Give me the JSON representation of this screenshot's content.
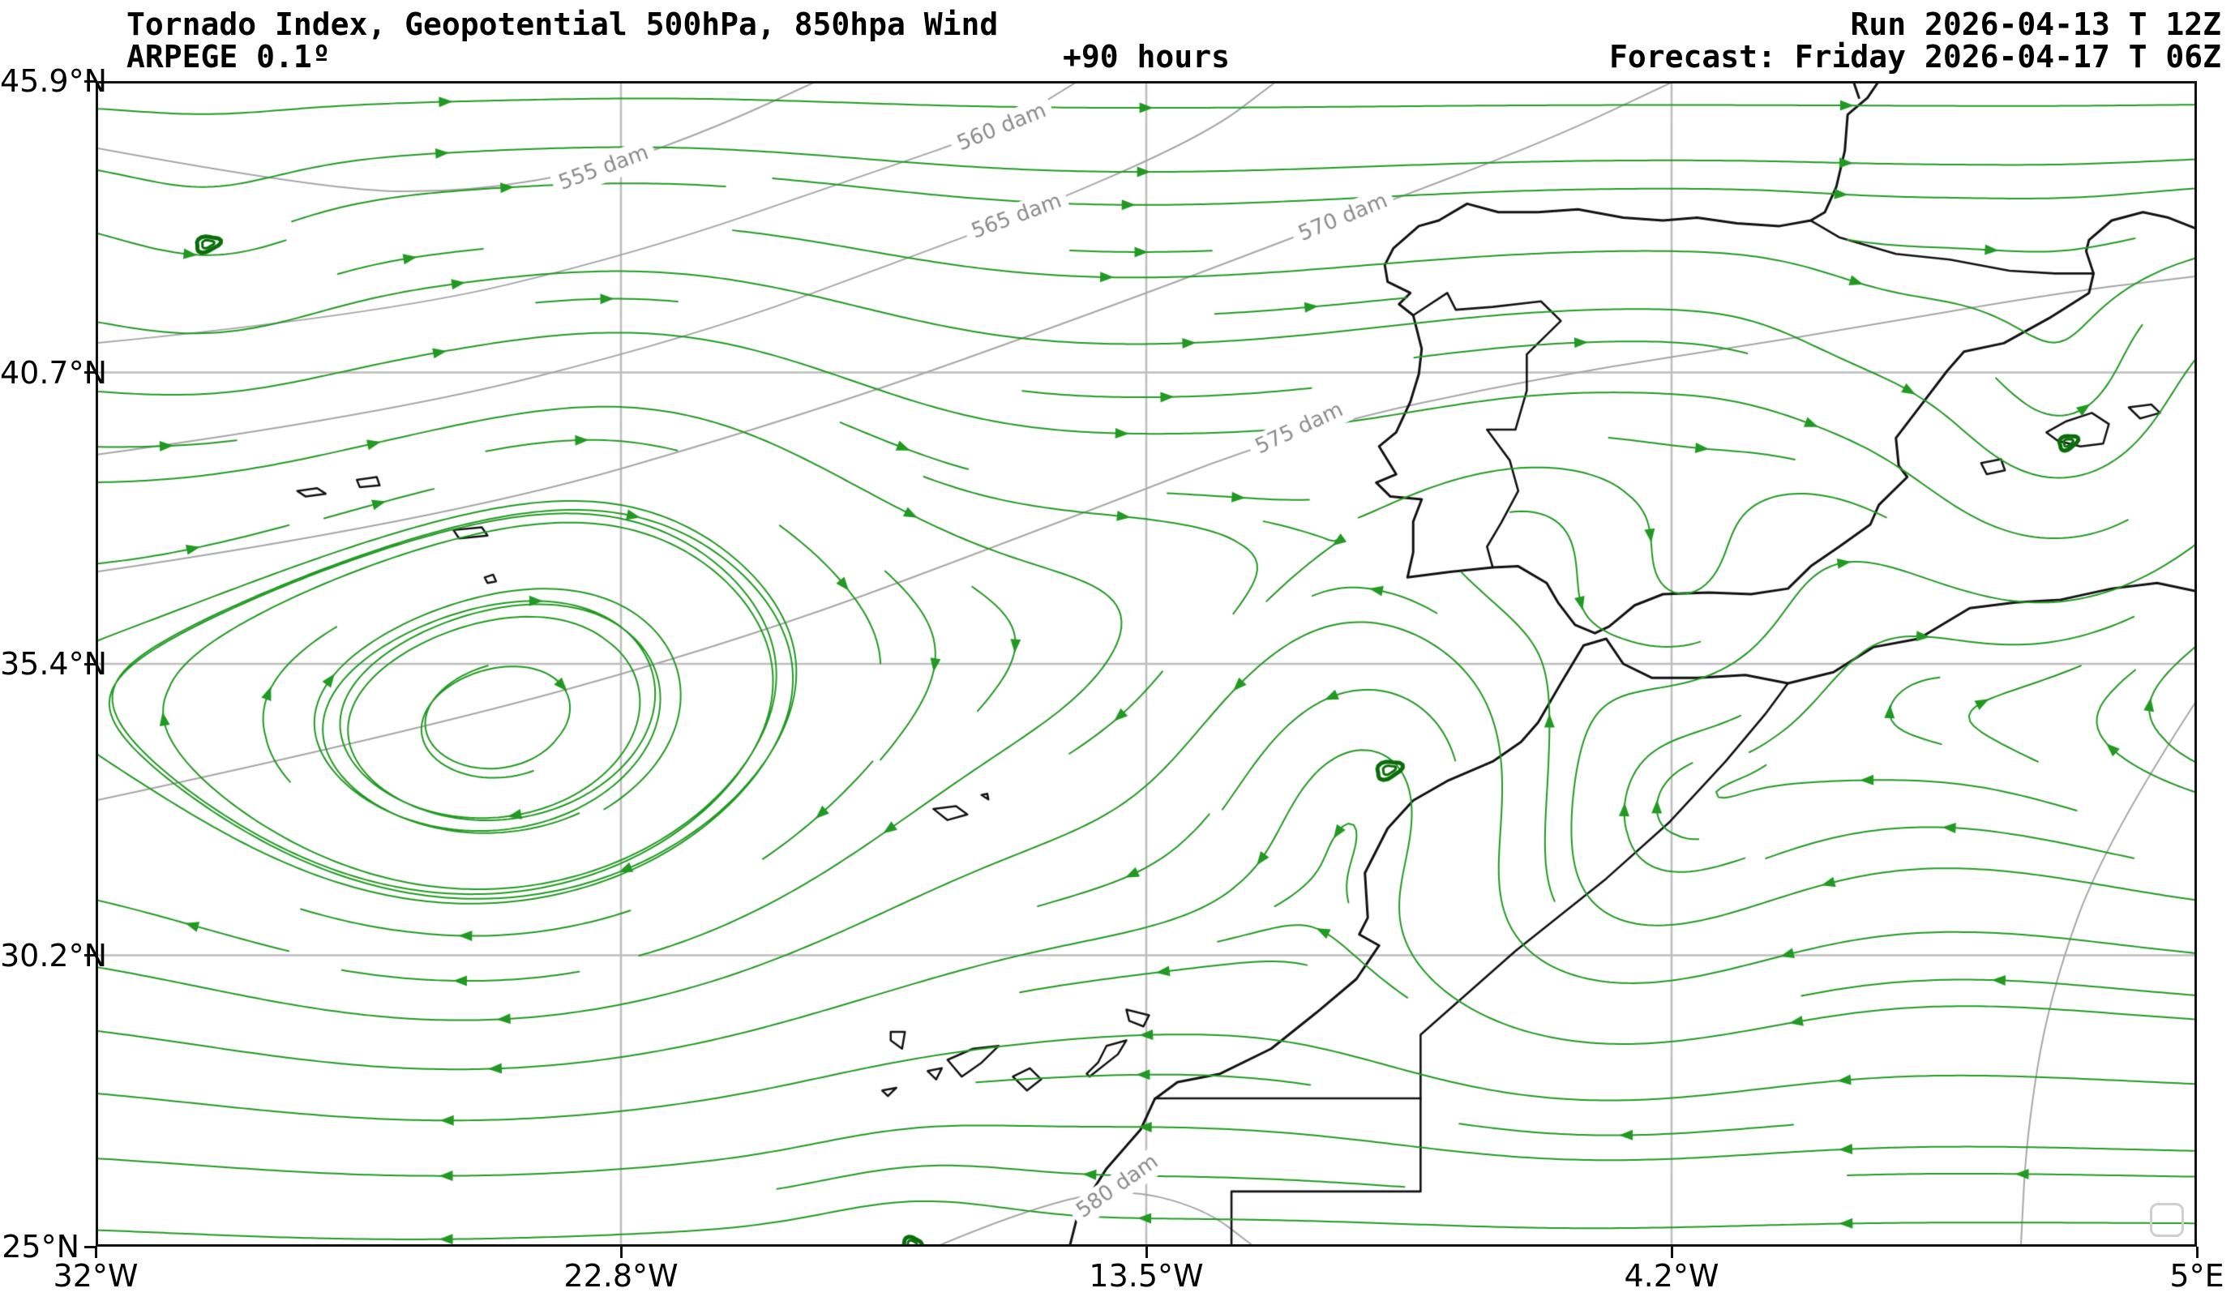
{
  "header": {
    "title": "Tornado Index, Geopotential 500hPa, 850hpa Wind",
    "model": "ARPEGE 0.1º",
    "lead_time": "+90 hours",
    "run": "Run 2026-04-13 T 12Z",
    "forecast": "Forecast: Friday 2026-04-17 T 06Z"
  },
  "axes": {
    "lat_ticks": [
      "45.9°N",
      "40.7°N",
      "35.4°N",
      "30.2°N",
      "25°N"
    ],
    "lon_ticks": [
      "32°W",
      "22.8°W",
      "13.5°W",
      "4.2°W",
      "5°E"
    ]
  },
  "map": {
    "bounds": {
      "lon_min": -32,
      "lon_max": 5,
      "lat_min": 25,
      "lat_max": 45.9
    },
    "colors": {
      "stream": "#229922",
      "contour": "#a6a6a6",
      "contour_label": "#8c8c8c",
      "coast": "#111111",
      "grid": "#bdbdbd",
      "frame": "#111111",
      "spot": "#0a6d0a",
      "logo_border": "#cfcfcf"
    },
    "contours": [
      {
        "label": "555 dam",
        "label_lon": -23.05,
        "label_lat": 44.33,
        "angle": -20,
        "points": [
          [
            -32,
            44.7
          ],
          [
            -28,
            43.95
          ],
          [
            -25.5,
            43.9
          ],
          [
            -23.05,
            44.33
          ],
          [
            -21,
            45.1
          ],
          [
            -19.3,
            45.9
          ]
        ]
      },
      {
        "label": "560 dam",
        "label_lon": -16.04,
        "label_lat": 45.06,
        "angle": -22,
        "points": [
          [
            -32,
            41.2
          ],
          [
            -27,
            41.7
          ],
          [
            -22.5,
            42.8
          ],
          [
            -18.5,
            44.2
          ],
          [
            -16.04,
            45.06
          ],
          [
            -14.7,
            45.9
          ]
        ]
      },
      {
        "label": "565 dam",
        "label_lon": -15.78,
        "label_lat": 43.46,
        "angle": -20,
        "points": [
          [
            -32,
            39.2
          ],
          [
            -27,
            39.9
          ],
          [
            -21.5,
            41.3
          ],
          [
            -17.5,
            42.8
          ],
          [
            -15.78,
            43.46
          ],
          [
            -12.5,
            44.9
          ],
          [
            -11.2,
            45.9
          ]
        ]
      },
      {
        "label": "570 dam",
        "label_lon": -10.03,
        "label_lat": 43.44,
        "angle": -22,
        "points": [
          [
            -32,
            37.1
          ],
          [
            -26,
            38.0
          ],
          [
            -19.5,
            39.9
          ],
          [
            -14,
            41.9
          ],
          [
            -10.03,
            43.44
          ],
          [
            -6.5,
            44.8
          ],
          [
            -4.2,
            45.9
          ]
        ]
      },
      {
        "label": "575 dam",
        "label_lon": -10.8,
        "label_lat": 39.66,
        "angle": -25,
        "points": [
          [
            -32,
            33.0
          ],
          [
            -26.5,
            34.2
          ],
          [
            -20.5,
            35.9
          ],
          [
            -15,
            38.0
          ],
          [
            -10.8,
            39.66
          ],
          [
            -6.5,
            40.6
          ],
          [
            -2,
            41.3
          ],
          [
            2.5,
            42.1
          ],
          [
            5,
            42.4
          ]
        ]
      },
      {
        "label": "580 dam",
        "label_lon": -14.0,
        "label_lat": 26.07,
        "angle": -35,
        "points": [
          [
            -17.2,
            25.0
          ],
          [
            -15.8,
            25.6
          ],
          [
            -14.0,
            26.07
          ],
          [
            -12.5,
            25.7
          ],
          [
            -11.6,
            25.0
          ]
        ]
      },
      {
        "label": "",
        "label_lon": 99,
        "label_lat": 99,
        "angle": 0,
        "points": [
          [
            5,
            34.8
          ],
          [
            3.4,
            32.3
          ],
          [
            2.4,
            29.5
          ],
          [
            2.0,
            27.0
          ],
          [
            1.9,
            25.0
          ]
        ]
      }
    ],
    "coastlines": [
      [
        [
          5,
          43.25
        ],
        [
          4.5,
          43.45
        ],
        [
          4.05,
          43.55
        ],
        [
          3.5,
          43.4
        ],
        [
          3.1,
          43.05
        ],
        [
          3.05,
          42.85
        ],
        [
          3.18,
          42.45
        ],
        [
          3.1,
          42.1
        ],
        [
          2.4,
          41.65
        ],
        [
          1.6,
          41.2
        ],
        [
          0.9,
          41.05
        ],
        [
          0.6,
          40.7
        ],
        [
          0.15,
          40.1
        ],
        [
          -0.3,
          39.5
        ],
        [
          -0.25,
          39.0
        ],
        [
          -0.1,
          38.8
        ],
        [
          -0.6,
          38.3
        ],
        [
          -0.75,
          37.95
        ],
        [
          -1.3,
          37.55
        ],
        [
          -1.8,
          37.2
        ],
        [
          -2.2,
          36.8
        ],
        [
          -2.85,
          36.7
        ],
        [
          -3.6,
          36.73
        ],
        [
          -4.4,
          36.7
        ],
        [
          -4.9,
          36.5
        ],
        [
          -5.35,
          36.12
        ],
        [
          -5.6,
          36.0
        ],
        [
          -5.95,
          36.15
        ],
        [
          -6.25,
          36.55
        ],
        [
          -6.45,
          36.9
        ],
        [
          -6.95,
          37.2
        ],
        [
          -7.4,
          37.18
        ],
        [
          -8.15,
          37.1
        ],
        [
          -8.9,
          37.0
        ],
        [
          -8.8,
          37.45
        ],
        [
          -8.8,
          38.0
        ],
        [
          -8.65,
          38.4
        ],
        [
          -9.2,
          38.45
        ],
        [
          -9.45,
          38.7
        ],
        [
          -9.1,
          38.85
        ],
        [
          -9.4,
          39.35
        ],
        [
          -9.1,
          39.6
        ],
        [
          -8.85,
          40.15
        ],
        [
          -8.7,
          40.65
        ],
        [
          -8.65,
          41.1
        ],
        [
          -8.8,
          41.7
        ],
        [
          -9.05,
          41.9
        ],
        [
          -8.85,
          42.1
        ],
        [
          -9.25,
          42.3
        ],
        [
          -9.3,
          42.6
        ],
        [
          -9.15,
          42.9
        ],
        [
          -8.7,
          43.3
        ],
        [
          -8.35,
          43.4
        ],
        [
          -7.85,
          43.7
        ],
        [
          -7.3,
          43.55
        ],
        [
          -6.6,
          43.55
        ],
        [
          -5.9,
          43.6
        ],
        [
          -5.1,
          43.45
        ],
        [
          -4.4,
          43.4
        ],
        [
          -3.8,
          43.45
        ],
        [
          -3.1,
          43.35
        ],
        [
          -2.35,
          43.3
        ],
        [
          -1.8,
          43.4
        ],
        [
          -1.55,
          43.55
        ],
        [
          -1.35,
          44.0
        ],
        [
          -1.2,
          44.65
        ],
        [
          -1.15,
          45.3
        ],
        [
          -0.8,
          45.6
        ],
        [
          -0.6,
          45.9
        ]
      ],
      [
        [
          -1.05,
          45.9
        ],
        [
          -0.95,
          45.6
        ]
      ],
      [
        [
          5,
          36.75
        ],
        [
          4.3,
          36.9
        ],
        [
          3.5,
          36.8
        ],
        [
          2.6,
          36.6
        ],
        [
          1.8,
          36.55
        ],
        [
          1.0,
          36.45
        ],
        [
          0.1,
          35.9
        ],
        [
          -0.7,
          35.75
        ],
        [
          -1.4,
          35.3
        ],
        [
          -2.2,
          35.1
        ],
        [
          -2.95,
          35.25
        ],
        [
          -3.8,
          35.2
        ],
        [
          -4.6,
          35.2
        ],
        [
          -5.1,
          35.45
        ],
        [
          -5.4,
          35.9
        ],
        [
          -5.8,
          35.78
        ],
        [
          -6.2,
          35.1
        ],
        [
          -6.6,
          34.4
        ],
        [
          -6.9,
          34.05
        ],
        [
          -7.4,
          33.7
        ],
        [
          -8.2,
          33.35
        ],
        [
          -8.8,
          33.0
        ],
        [
          -9.25,
          32.5
        ],
        [
          -9.65,
          31.7
        ],
        [
          -9.6,
          30.9
        ],
        [
          -9.75,
          30.6
        ],
        [
          -9.4,
          30.4
        ],
        [
          -9.8,
          29.8
        ],
        [
          -10.5,
          29.2
        ],
        [
          -11.3,
          28.55
        ],
        [
          -12.2,
          28.1
        ],
        [
          -12.95,
          27.95
        ],
        [
          -13.35,
          27.65
        ],
        [
          -13.6,
          27.1
        ],
        [
          -14.2,
          26.4
        ],
        [
          -14.7,
          25.6
        ],
        [
          -14.85,
          25.0
        ]
      ]
    ],
    "borders": [
      [
        [
          3.18,
          42.45
        ],
        [
          2.5,
          42.45
        ],
        [
          1.7,
          42.5
        ],
        [
          0.65,
          42.7
        ],
        [
          -0.3,
          42.8
        ],
        [
          -1.3,
          43.1
        ],
        [
          -1.8,
          43.4
        ]
      ],
      [
        [
          -8.8,
          41.7
        ],
        [
          -8.2,
          42.1
        ],
        [
          -8.05,
          41.8
        ],
        [
          -7.4,
          41.85
        ],
        [
          -6.55,
          41.95
        ],
        [
          -6.2,
          41.6
        ],
        [
          -6.8,
          41.0
        ],
        [
          -6.8,
          40.35
        ],
        [
          -7.0,
          39.65
        ],
        [
          -7.5,
          39.65
        ],
        [
          -7.1,
          39.1
        ],
        [
          -6.95,
          38.55
        ],
        [
          -7.25,
          37.98
        ],
        [
          -7.5,
          37.55
        ],
        [
          -7.4,
          37.18
        ]
      ],
      [
        [
          -2.2,
          35.1
        ],
        [
          -2.6,
          34.55
        ],
        [
          -3.3,
          33.7
        ],
        [
          -4.3,
          32.6
        ],
        [
          -5.4,
          31.6
        ],
        [
          -7.0,
          30.3
        ],
        [
          -8.67,
          28.8
        ],
        [
          -8.67,
          27.66
        ]
      ],
      [
        [
          -13.35,
          27.66
        ],
        [
          -11.5,
          27.66
        ],
        [
          -8.67,
          27.66
        ],
        [
          -8.67,
          25.99
        ],
        [
          -12.0,
          25.99
        ],
        [
          -12.0,
          24.9
        ]
      ]
    ],
    "islands": [
      [
        [
          -28.45,
          38.55
        ],
        [
          -28.1,
          38.6
        ],
        [
          -27.95,
          38.5
        ],
        [
          -28.3,
          38.45
        ]
      ],
      [
        [
          -27.4,
          38.75
        ],
        [
          -27.05,
          38.8
        ],
        [
          -27.0,
          38.65
        ],
        [
          -27.35,
          38.62
        ]
      ],
      [
        [
          -25.7,
          37.85
        ],
        [
          -25.2,
          37.9
        ],
        [
          -25.1,
          37.75
        ],
        [
          -25.6,
          37.7
        ]
      ],
      [
        [
          -25.15,
          37.0
        ],
        [
          -25.0,
          37.05
        ],
        [
          -24.95,
          36.93
        ],
        [
          -25.1,
          36.9
        ]
      ],
      [
        [
          -17.25,
          32.85
        ],
        [
          -16.85,
          32.9
        ],
        [
          -16.65,
          32.75
        ],
        [
          -17.0,
          32.65
        ]
      ],
      [
        [
          -16.4,
          33.1
        ],
        [
          -16.3,
          33.12
        ],
        [
          -16.28,
          33.02
        ]
      ],
      [
        [
          -13.85,
          29.25
        ],
        [
          -13.45,
          29.15
        ],
        [
          -13.55,
          28.95
        ],
        [
          -13.8,
          29.05
        ]
      ],
      [
        [
          -14.5,
          28.05
        ],
        [
          -14.0,
          28.45
        ],
        [
          -13.85,
          28.7
        ],
        [
          -14.2,
          28.6
        ],
        [
          -14.35,
          28.3
        ],
        [
          -14.55,
          28.1
        ]
      ],
      [
        [
          -15.85,
          28.05
        ],
        [
          -15.55,
          28.2
        ],
        [
          -15.35,
          28.0
        ],
        [
          -15.6,
          27.8
        ]
      ],
      [
        [
          -17.0,
          28.35
        ],
        [
          -16.55,
          28.55
        ],
        [
          -16.1,
          28.6
        ],
        [
          -16.4,
          28.3
        ],
        [
          -16.75,
          28.05
        ]
      ],
      [
        [
          -18.0,
          28.85
        ],
        [
          -17.75,
          28.85
        ],
        [
          -17.8,
          28.55
        ],
        [
          -18.0,
          28.7
        ]
      ],
      [
        [
          -17.35,
          28.15
        ],
        [
          -17.1,
          28.2
        ],
        [
          -17.2,
          28.0
        ]
      ],
      [
        [
          -18.15,
          27.8
        ],
        [
          -17.9,
          27.85
        ],
        [
          -18.05,
          27.7
        ]
      ],
      [
        [
          2.35,
          39.6
        ],
        [
          2.7,
          39.8
        ],
        [
          3.15,
          39.95
        ],
        [
          3.45,
          39.75
        ],
        [
          3.35,
          39.4
        ],
        [
          2.95,
          39.35
        ],
        [
          2.55,
          39.45
        ]
      ],
      [
        [
          3.8,
          40.05
        ],
        [
          4.2,
          40.1
        ],
        [
          4.35,
          39.95
        ],
        [
          4.0,
          39.85
        ]
      ],
      [
        [
          1.2,
          39.05
        ],
        [
          1.55,
          39.12
        ],
        [
          1.62,
          38.92
        ],
        [
          1.3,
          38.85
        ]
      ]
    ],
    "spots": [
      {
        "lon": -30.03,
        "lat": 42.98,
        "rx": 15,
        "ry": 9,
        "rot": -15
      },
      {
        "lon": -9.23,
        "lat": 33.55,
        "rx": 16,
        "ry": 10,
        "rot": -20
      },
      {
        "lon": 2.73,
        "lat": 39.42,
        "rx": 12,
        "ry": 8,
        "rot": -25
      },
      {
        "lon": -17.63,
        "lat": 25.05,
        "rx": 11,
        "ry": 8,
        "rot": 0
      }
    ],
    "flow": {
      "zonal": 3.2,
      "center_lat": 35.3,
      "waves": [
        {
          "amp": 16,
          "kx": 1.2,
          "phase": 0.7
        },
        {
          "amp": 9,
          "kx": 2.4,
          "phase": 3.8
        }
      ],
      "vortices": [
        {
          "lon": 2.7,
          "lat": 39.5,
          "s": -55,
          "r": 2.0
        },
        {
          "lon": -9.2,
          "lat": 33.6,
          "s": -48,
          "r": 2.4
        },
        {
          "lon": -30.0,
          "lat": 43.0,
          "s": -18,
          "r": 1.5
        },
        {
          "lon": -17.6,
          "lat": 25.3,
          "s": -12,
          "r": 1.5
        },
        {
          "lon": -3.9,
          "lat": 36.5,
          "s": -25,
          "r": 1.8
        },
        {
          "lon": -0.8,
          "lat": 41.4,
          "s": -12,
          "r": 1.3
        },
        {
          "lon": -5.8,
          "lat": 30.2,
          "s": 20,
          "r": 2.6
        },
        {
          "lon": -26.5,
          "lat": 31.0,
          "s": 26,
          "r": 4.2
        },
        {
          "lon": -13.5,
          "lat": 36.8,
          "s": 16,
          "r": 3.2
        },
        {
          "lon": -22.0,
          "lat": 41.5,
          "s": 10,
          "r": 2.8
        }
      ]
    },
    "logo": {
      "shape": "rounded-square-watermark"
    }
  }
}
